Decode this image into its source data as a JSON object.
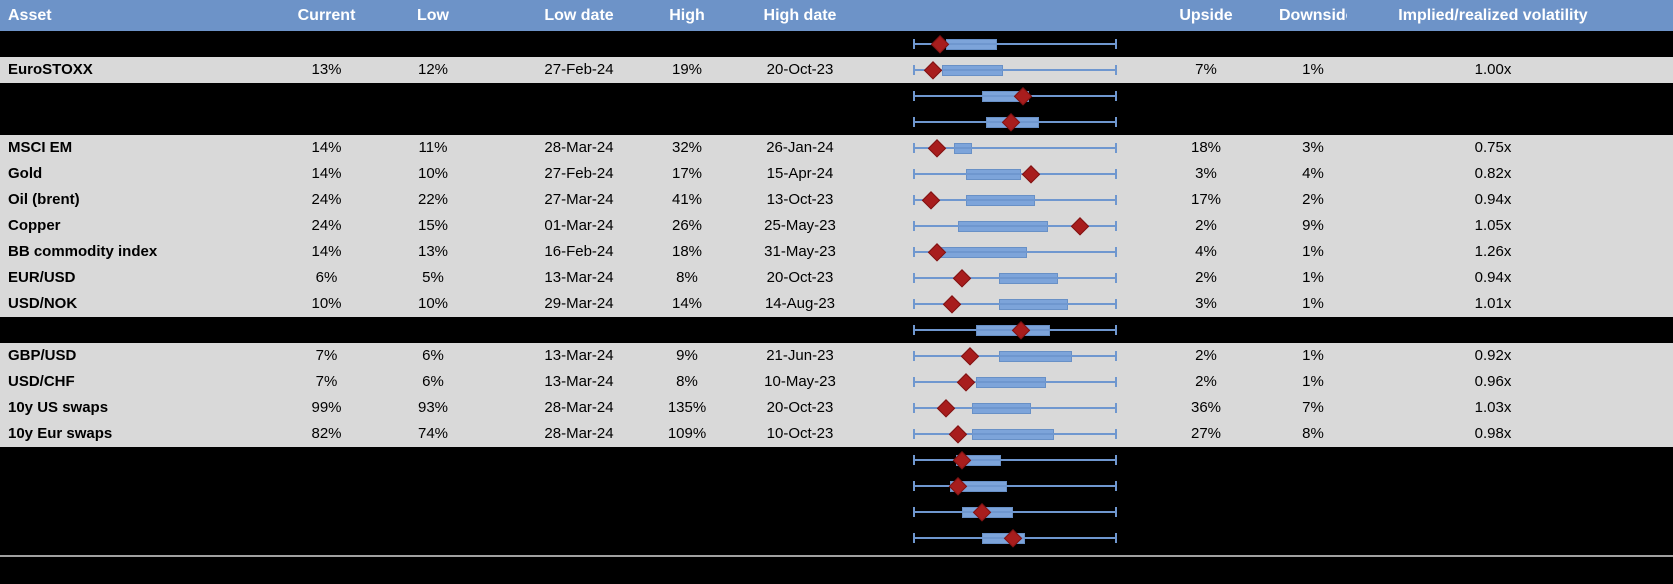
{
  "header": {
    "columns": [
      "Asset",
      "Current",
      "Low",
      "Low date",
      "High",
      "High date",
      "",
      "Upside",
      "Downside",
      "Implied/realized volatility"
    ]
  },
  "colors": {
    "header_bg": "#6d93c8",
    "header_text": "#ffffff",
    "row_bg": "#d9d9d9",
    "spacer_bg": "#000000",
    "box_fill": "#7da4da",
    "box_border": "#6890c6",
    "whisker": "#6f97cf",
    "marker_fill": "#a81d1d",
    "divider": "#a0a0a0"
  },
  "rows": [
    {
      "type": "spacer",
      "boxplot": {
        "box": [
          0.16,
          0.41
        ],
        "marker": 0.13
      }
    },
    {
      "type": "data",
      "asset": "EuroSTOXX",
      "current": "13%",
      "low": "12%",
      "low_date": "27-Feb-24",
      "high": "19%",
      "high_date": "20-Oct-23",
      "upside": "7%",
      "downside": "1%",
      "vol": "1.00x",
      "boxplot": {
        "box": [
          0.14,
          0.44
        ],
        "marker": 0.1
      }
    },
    {
      "type": "spacer",
      "boxplot": {
        "box": [
          0.34,
          0.57
        ],
        "marker": 0.54
      }
    },
    {
      "type": "spacer",
      "boxplot": {
        "box": [
          0.36,
          0.62
        ],
        "marker": 0.48
      }
    },
    {
      "type": "data",
      "asset": "MSCI EM",
      "current": "14%",
      "low": "11%",
      "low_date": "28-Mar-24",
      "high": "32%",
      "high_date": "26-Jan-24",
      "upside": "18%",
      "downside": "3%",
      "vol": "0.75x",
      "boxplot": {
        "box": [
          0.2,
          0.29
        ],
        "marker": 0.12
      }
    },
    {
      "type": "data",
      "asset": "Gold",
      "current": "14%",
      "low": "10%",
      "low_date": "27-Feb-24",
      "high": "17%",
      "high_date": "15-Apr-24",
      "upside": "3%",
      "downside": "4%",
      "vol": "0.82x",
      "boxplot": {
        "box": [
          0.26,
          0.53
        ],
        "marker": 0.58
      }
    },
    {
      "type": "data",
      "asset": "Oil (brent)",
      "current": "24%",
      "low": "22%",
      "low_date": "27-Mar-24",
      "high": "41%",
      "high_date": "13-Oct-23",
      "upside": "17%",
      "downside": "2%",
      "vol": "0.94x",
      "boxplot": {
        "box": [
          0.26,
          0.6
        ],
        "marker": 0.09
      }
    },
    {
      "type": "data",
      "asset": "Copper",
      "current": "24%",
      "low": "15%",
      "low_date": "01-Mar-24",
      "high": "26%",
      "high_date": "25-May-23",
      "upside": "2%",
      "downside": "9%",
      "vol": "1.05x",
      "boxplot": {
        "box": [
          0.22,
          0.66
        ],
        "marker": 0.82
      }
    },
    {
      "type": "data",
      "asset": "BB commodity index",
      "current": "14%",
      "low": "13%",
      "low_date": "16-Feb-24",
      "high": "18%",
      "high_date": "31-May-23",
      "upside": "4%",
      "downside": "1%",
      "vol": "1.26x",
      "boxplot": {
        "box": [
          0.12,
          0.56
        ],
        "marker": 0.12
      }
    },
    {
      "type": "data",
      "asset": "EUR/USD",
      "current": "6%",
      "low": "5%",
      "low_date": "13-Mar-24",
      "high": "8%",
      "high_date": "20-Oct-23",
      "upside": "2%",
      "downside": "1%",
      "vol": "0.94x",
      "boxplot": {
        "box": [
          0.42,
          0.71
        ],
        "marker": 0.24
      }
    },
    {
      "type": "data",
      "asset": "USD/NOK",
      "current": "10%",
      "low": "10%",
      "low_date": "29-Mar-24",
      "high": "14%",
      "high_date": "14-Aug-23",
      "upside": "3%",
      "downside": "1%",
      "vol": "1.01x",
      "boxplot": {
        "box": [
          0.42,
          0.76
        ],
        "marker": 0.19
      }
    },
    {
      "type": "spacer",
      "boxplot": {
        "box": [
          0.31,
          0.67
        ],
        "marker": 0.53
      }
    },
    {
      "type": "data",
      "asset": "GBP/USD",
      "current": "7%",
      "low": "6%",
      "low_date": "13-Mar-24",
      "high": "9%",
      "high_date": "21-Jun-23",
      "upside": "2%",
      "downside": "1%",
      "vol": "0.92x",
      "boxplot": {
        "box": [
          0.42,
          0.78
        ],
        "marker": 0.28
      }
    },
    {
      "type": "data",
      "asset": "USD/CHF",
      "current": "7%",
      "low": "6%",
      "low_date": "13-Mar-24",
      "high": "8%",
      "high_date": "10-May-23",
      "upside": "2%",
      "downside": "1%",
      "vol": "0.96x",
      "boxplot": {
        "box": [
          0.31,
          0.65
        ],
        "marker": 0.26
      }
    },
    {
      "type": "data",
      "asset": "10y US swaps",
      "current": "99%",
      "low": "93%",
      "low_date": "28-Mar-24",
      "high": "135%",
      "high_date": "20-Oct-23",
      "upside": "36%",
      "downside": "7%",
      "vol": "1.03x",
      "boxplot": {
        "box": [
          0.29,
          0.58
        ],
        "marker": 0.16
      }
    },
    {
      "type": "data",
      "asset": "10y Eur swaps",
      "current": "82%",
      "low": "74%",
      "low_date": "28-Mar-24",
      "high": "109%",
      "high_date": "10-Oct-23",
      "upside": "27%",
      "downside": "8%",
      "vol": "0.98x",
      "boxplot": {
        "box": [
          0.29,
          0.69
        ],
        "marker": 0.22
      }
    },
    {
      "type": "spacer",
      "boxplot": {
        "box": [
          0.21,
          0.43
        ],
        "marker": 0.24
      }
    },
    {
      "type": "spacer",
      "boxplot": {
        "box": [
          0.18,
          0.46
        ],
        "marker": 0.22
      }
    },
    {
      "type": "spacer",
      "boxplot": {
        "box": [
          0.24,
          0.49
        ],
        "marker": 0.34
      }
    },
    {
      "type": "spacer",
      "boxplot": {
        "box": [
          0.34,
          0.55
        ],
        "marker": 0.49
      }
    }
  ]
}
